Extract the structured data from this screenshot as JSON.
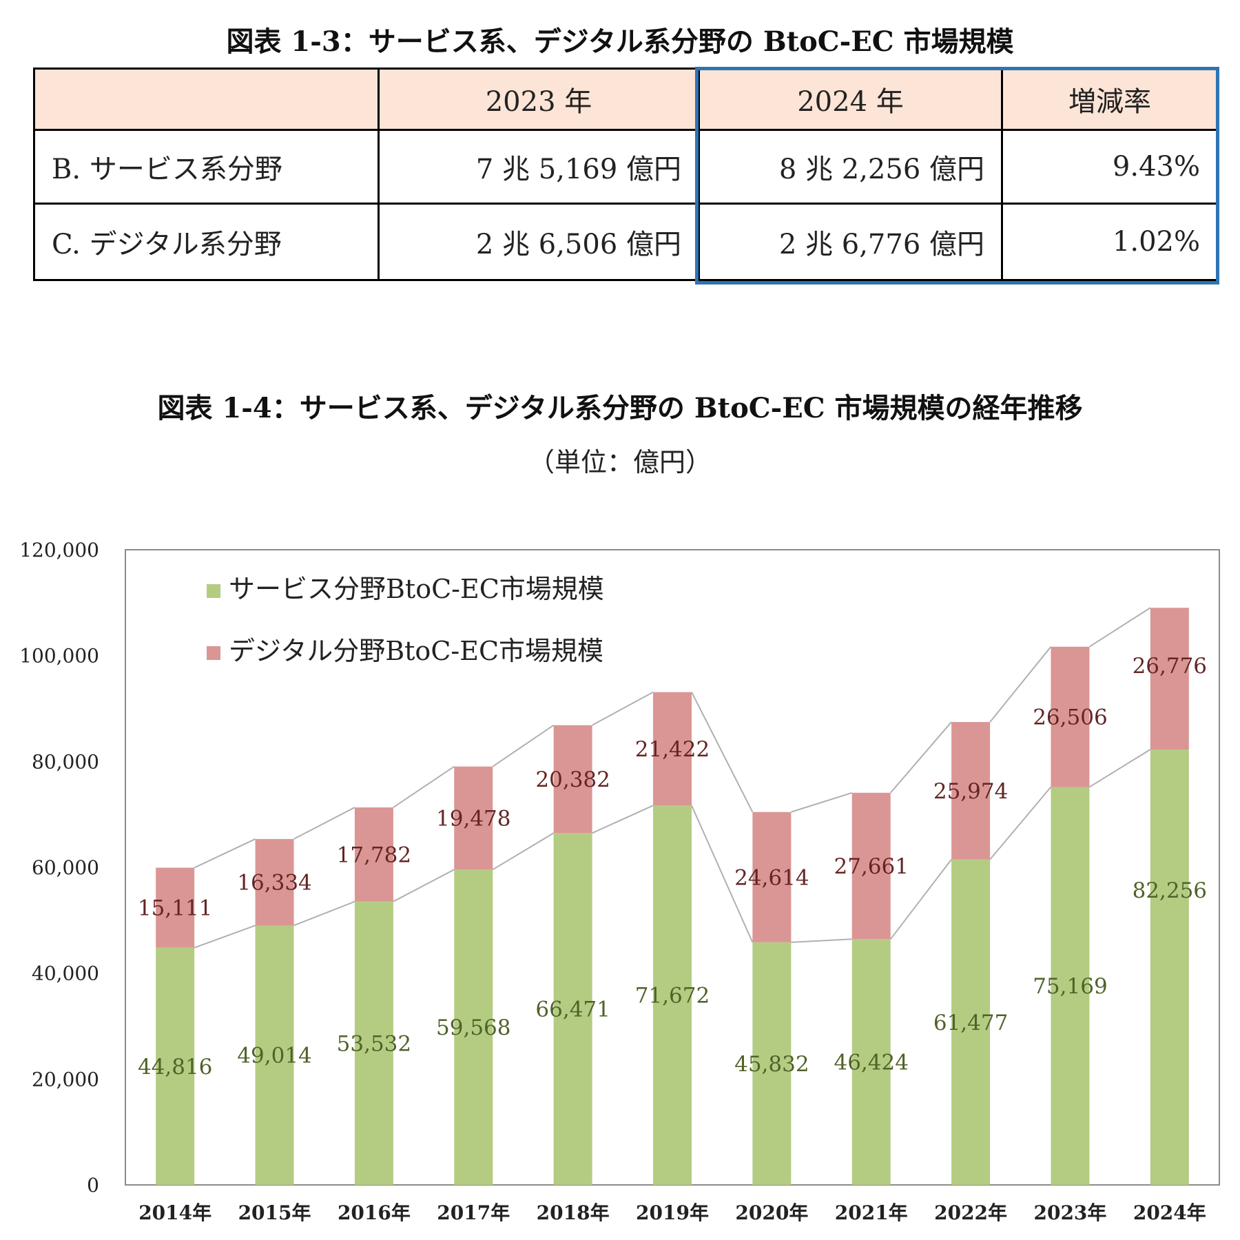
{
  "table": {
    "title": "図表 1-3：サービス系、デジタル系分野の BtoC-EC 市場規模",
    "headers": [
      "",
      "2023 年",
      "2024 年",
      "増減率"
    ],
    "rows": [
      {
        "label": "B. サービス系分野",
        "y2023": "7 兆 5,169 億円",
        "y2024": "8 兆 2,256 億円",
        "rate": "9.43%"
      },
      {
        "label": "C. デジタル系分野",
        "y2023": "2 兆 6,506 億円",
        "y2024": "2 兆 6,776 億円",
        "rate": "1.02%"
      }
    ],
    "highlight_color": "#2e74b5",
    "header_bg": "#fce4d6"
  },
  "chart_title": "図表 1-4：サービス系、デジタル系分野の BtoC-EC 市場規模の経年推移",
  "chart_unit": "（単位：億円）",
  "chart_data": {
    "type": "bar",
    "stacked": true,
    "categories": [
      "2014年",
      "2015年",
      "2016年",
      "2017年",
      "2018年",
      "2019年",
      "2020年",
      "2021年",
      "2022年",
      "2023年",
      "2024年"
    ],
    "series": [
      {
        "name": "サービス分野BtoC-EC市場規模",
        "color": "#b3cc82",
        "label_color": "#4f6228",
        "values": [
          44816,
          49014,
          53532,
          59568,
          66471,
          71672,
          45832,
          46424,
          61477,
          75169,
          82256
        ],
        "labels": [
          "44,816",
          "49,014",
          "53,532",
          "59,568",
          "66,471",
          "71,672",
          "45,832",
          "46,424",
          "61,477",
          "75,169",
          "82,256"
        ]
      },
      {
        "name": "デジタル分野BtoC-EC市場規模",
        "color": "#da9694",
        "label_color": "#632523",
        "values": [
          15111,
          16334,
          17782,
          19478,
          20382,
          21422,
          24614,
          27661,
          25974,
          26506,
          26776
        ],
        "labels": [
          "15,111",
          "16,334",
          "17,782",
          "19,478",
          "20,382",
          "21,422",
          "24,614",
          "27,661",
          "25,974",
          "26,506",
          "26,776"
        ]
      }
    ],
    "ylim": [
      0,
      120000
    ],
    "yticks": [
      0,
      20000,
      40000,
      60000,
      80000,
      100000,
      120000
    ],
    "ytick_labels": [
      "0",
      "20,000",
      "40,000",
      "60,000",
      "80,000",
      "100,000",
      "120,000"
    ],
    "grid": false,
    "series_lines": true,
    "legend_position": "top-left"
  }
}
